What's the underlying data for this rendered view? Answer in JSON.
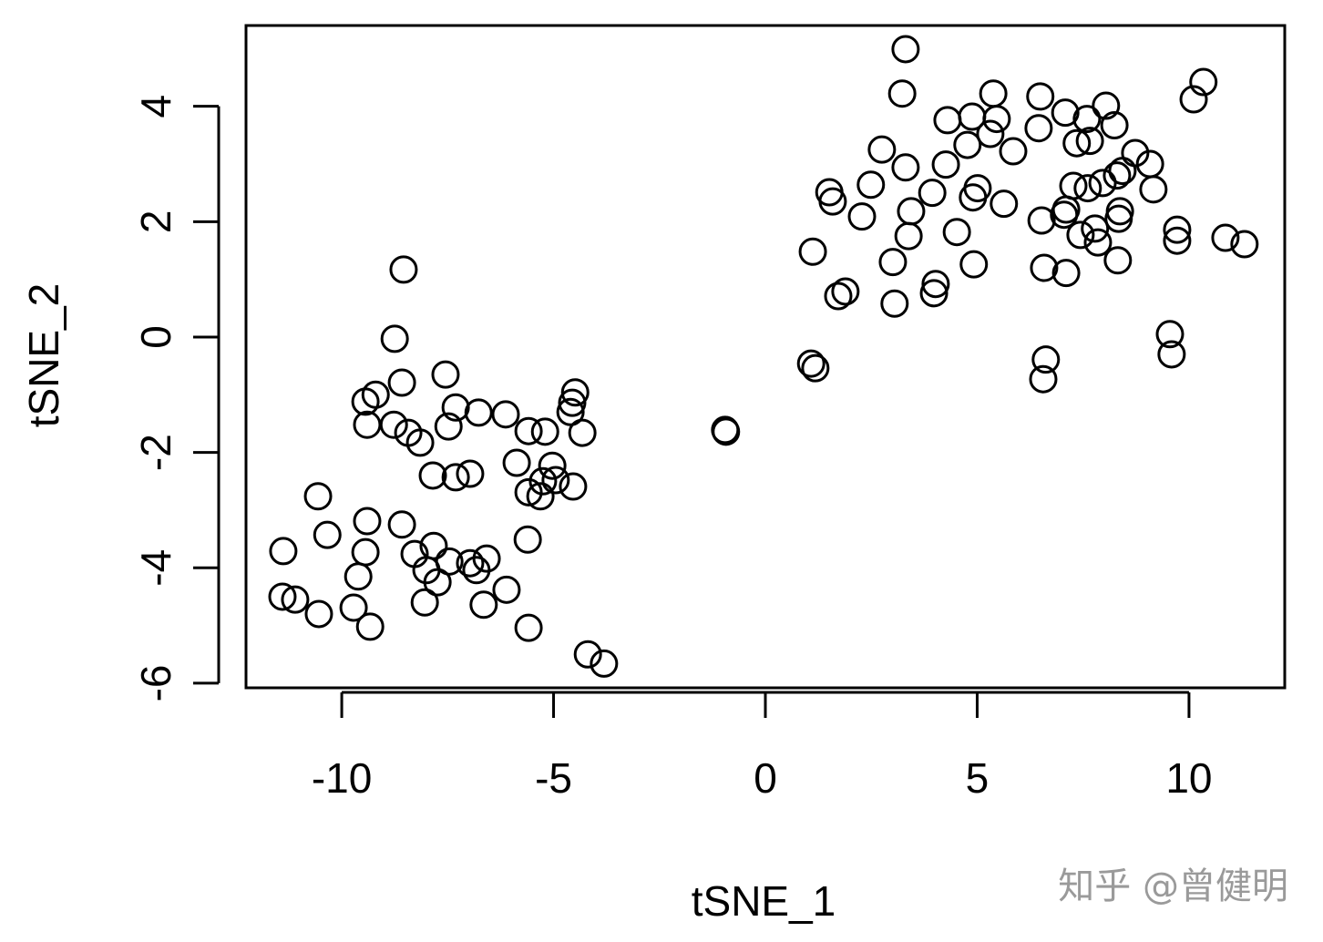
{
  "chart_data": {
    "type": "scatter",
    "x_label": "tSNE_1",
    "y_label": "tSNE_2",
    "xlim": [
      -12.26,
      12.26
    ],
    "ylim": [
      -6.08,
      5.4
    ],
    "xticks": [
      -10,
      -5,
      0,
      5,
      10
    ],
    "yticks": [
      -6,
      -4,
      -2,
      0,
      2,
      4
    ],
    "marker_color": "#000000",
    "x": [
      -8.54,
      -8.75,
      -8.58,
      -7.55,
      -9.2,
      -9.44,
      -9.4,
      -8.77,
      -8.43,
      -8.15,
      -7.31,
      -7.48,
      -6.77,
      -6.13,
      -5.59,
      -5.2,
      -4.49,
      -4.56,
      -4.6,
      -4.32,
      -5.87,
      -5.03,
      -4.95,
      -5.25,
      -5.59,
      -5.31,
      -4.54,
      -7.85,
      -7.31,
      -6.97,
      -10.56,
      -10.34,
      -8.58,
      -9.4,
      -9.44,
      -11.38,
      -9.61,
      -8.28,
      -7.83,
      -7.46,
      -8.0,
      -7.74,
      -6.97,
      -6.82,
      -6.58,
      -11.4,
      -11.1,
      -10.54,
      -9.72,
      -9.33,
      -8.04,
      -6.65,
      -6.11,
      -5.61,
      -5.59,
      -4.19,
      -3.81,
      -0.95,
      -0.93,
      1.08,
      1.18,
      3.31,
      3.23,
      5.38,
      10.34,
      10.11,
      6.49,
      4.3,
      4.88,
      5.46,
      5.31,
      4.77,
      5.85,
      6.45,
      7.08,
      7.59,
      8.04,
      8.24,
      7.35,
      7.66,
      8.73,
      9.08,
      8.43,
      8.3,
      9.16,
      2.75,
      3.31,
      4.26,
      2.49,
      1.51,
      1.59,
      2.28,
      3.44,
      3.38,
      3.94,
      5.01,
      4.9,
      5.63,
      4.52,
      1.12,
      4.92,
      3.01,
      4.02,
      3.98,
      1.72,
      1.89,
      3.05,
      6.52,
      7.05,
      7.1,
      7.27,
      7.61,
      7.96,
      7.44,
      7.78,
      7.85,
      8.34,
      8.37,
      8.32,
      6.58,
      7.1,
      9.72,
      9.72,
      10.86,
      11.31,
      9.55,
      9.59,
      6.62,
      6.56
    ],
    "y": [
      1.17,
      -0.03,
      -0.79,
      -0.65,
      -1.0,
      -1.12,
      -1.52,
      -1.52,
      -1.66,
      -1.83,
      -1.22,
      -1.55,
      -1.31,
      -1.34,
      -1.63,
      -1.64,
      -0.96,
      -1.14,
      -1.3,
      -1.66,
      -2.18,
      -2.23,
      -2.48,
      -2.5,
      -2.69,
      -2.76,
      -2.59,
      -2.4,
      -2.43,
      -2.37,
      -2.76,
      -3.43,
      -3.25,
      -3.19,
      -3.73,
      -3.71,
      -4.15,
      -3.76,
      -3.62,
      -3.89,
      -4.04,
      -4.25,
      -3.92,
      -4.04,
      -3.84,
      -4.5,
      -4.55,
      -4.8,
      -4.69,
      -5.02,
      -4.6,
      -4.64,
      -4.38,
      -3.51,
      -5.04,
      -5.5,
      -5.66,
      -1.61,
      -1.64,
      -0.46,
      -0.54,
      4.99,
      4.22,
      4.22,
      4.42,
      4.12,
      4.17,
      3.76,
      3.82,
      3.78,
      3.52,
      3.33,
      3.22,
      3.62,
      3.89,
      3.78,
      4.01,
      3.67,
      3.36,
      3.4,
      3.19,
      3.0,
      2.88,
      2.8,
      2.56,
      3.25,
      2.94,
      2.99,
      2.64,
      2.51,
      2.35,
      2.09,
      2.18,
      1.75,
      2.5,
      2.58,
      2.42,
      2.31,
      1.82,
      1.48,
      1.26,
      1.3,
      0.92,
      0.76,
      0.71,
      0.79,
      0.58,
      2.02,
      2.12,
      2.21,
      2.62,
      2.58,
      2.67,
      1.77,
      1.88,
      1.64,
      2.05,
      2.18,
      1.33,
      1.2,
      1.11,
      1.86,
      1.67,
      1.72,
      1.61,
      0.05,
      -0.3,
      -0.39,
      -0.73
    ]
  },
  "watermark": "知乎 @曾健明"
}
